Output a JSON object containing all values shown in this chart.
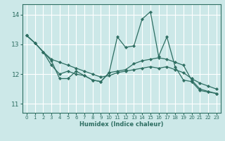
{
  "xlabel": "Humidex (Indice chaleur)",
  "xlim": [
    -0.5,
    23.5
  ],
  "ylim": [
    10.7,
    14.35
  ],
  "yticks": [
    11,
    12,
    13,
    14
  ],
  "xticks": [
    0,
    1,
    2,
    3,
    4,
    5,
    6,
    7,
    8,
    9,
    10,
    11,
    12,
    13,
    14,
    15,
    16,
    17,
    18,
    19,
    20,
    21,
    22,
    23
  ],
  "bg_color": "#cce8e8",
  "line_color": "#2e6e62",
  "grid_color": "#ffffff",
  "lines": [
    {
      "x": [
        0,
        1,
        2,
        3,
        4,
        5,
        6,
        7,
        8,
        9,
        10,
        11,
        12,
        13,
        14,
        15,
        16,
        17,
        18,
        19,
        20,
        21,
        22,
        23
      ],
      "y": [
        13.3,
        13.05,
        12.75,
        12.45,
        11.85,
        11.85,
        12.1,
        11.95,
        11.8,
        11.75,
        12.05,
        13.25,
        12.9,
        12.95,
        13.85,
        14.1,
        12.6,
        13.25,
        12.25,
        11.8,
        11.75,
        11.45,
        11.4,
        11.35
      ]
    },
    {
      "x": [
        0,
        1,
        2,
        3,
        4,
        5,
        6,
        7,
        8,
        9,
        10,
        11,
        12,
        13,
        14,
        15,
        16,
        17,
        18,
        19,
        20,
        21,
        22,
        23
      ],
      "y": [
        13.3,
        13.05,
        12.75,
        12.5,
        12.4,
        12.3,
        12.2,
        12.1,
        12.0,
        11.9,
        11.95,
        12.05,
        12.1,
        12.15,
        12.2,
        12.25,
        12.2,
        12.25,
        12.15,
        12.05,
        11.85,
        11.7,
        11.6,
        11.5
      ]
    },
    {
      "x": [
        0,
        1,
        2,
        3,
        4,
        5,
        6,
        7,
        8,
        9,
        10,
        11,
        12,
        13,
        14,
        15,
        16,
        17,
        18,
        19,
        20,
        21,
        22,
        23
      ],
      "y": [
        13.3,
        13.05,
        12.75,
        12.3,
        12.0,
        12.1,
        12.0,
        11.95,
        11.8,
        11.75,
        12.05,
        12.1,
        12.15,
        12.35,
        12.45,
        12.5,
        12.55,
        12.5,
        12.4,
        12.3,
        11.8,
        11.5,
        11.42,
        11.35
      ]
    }
  ]
}
